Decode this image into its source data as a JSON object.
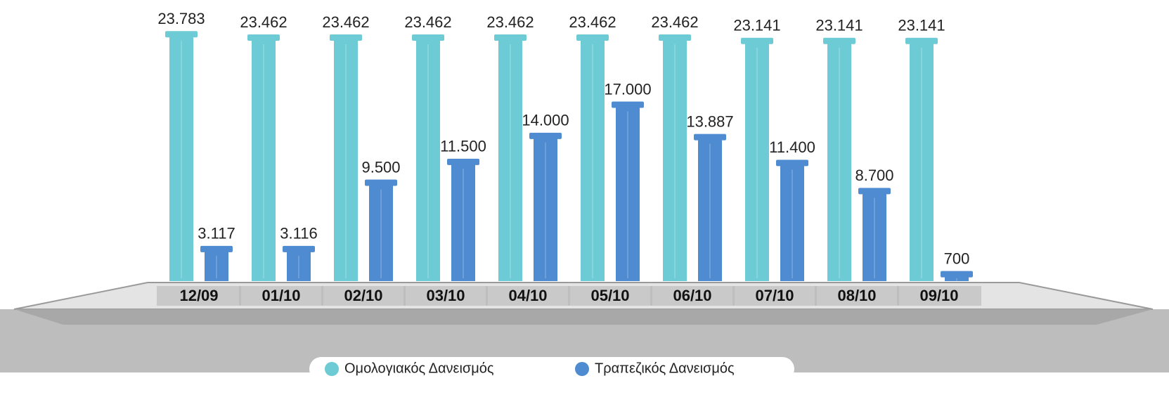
{
  "chart_data": {
    "type": "bar",
    "categories": [
      "12/09",
      "01/10",
      "02/10",
      "03/10",
      "04/10",
      "05/10",
      "06/10",
      "07/10",
      "08/10",
      "09/10"
    ],
    "ylim": [
      0,
      24000
    ],
    "series": [
      {
        "name": "Ομολογιακός Δανεισμός",
        "color": "#6ccbd5",
        "values": [
          23783,
          23462,
          23462,
          23462,
          23462,
          23462,
          23462,
          23141,
          23141,
          23141
        ],
        "value_labels": [
          "23.783",
          "23.462",
          "23.462",
          "23.462",
          "23.462",
          "23.462",
          "23.462",
          "23.141",
          "23.141",
          "23.141"
        ]
      },
      {
        "name": "Τραπεζικός Δανεισμός",
        "color": "#4f8bd0",
        "values": [
          3117,
          3116,
          9500,
          11500,
          14000,
          17000,
          13887,
          11400,
          8700,
          700
        ],
        "value_labels": [
          "3.117",
          "3.116",
          "9.500",
          "11.500",
          "14.000",
          "17.000",
          "13.887",
          "11.400",
          "8.700",
          "700"
        ]
      }
    ]
  }
}
